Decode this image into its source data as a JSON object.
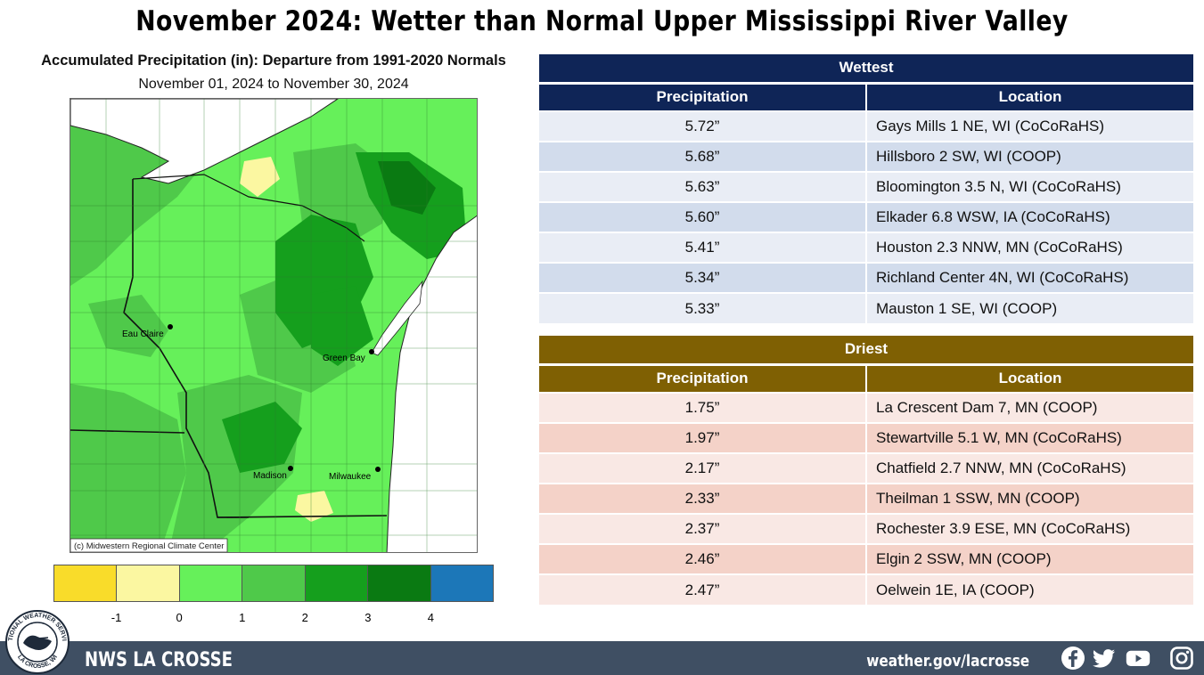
{
  "title": "November 2024:  Wetter than Normal Upper Mississippi River Valley",
  "map": {
    "title": "Accumulated Precipitation (in): Departure from 1991-2020 Normals",
    "subtitle": "November 01, 2024 to November 30, 2024",
    "cities": {
      "eau_claire": "Eau Claire",
      "green_bay": "Green Bay",
      "madison": "Madison",
      "milwaukee": "Milwaukee"
    },
    "copyright": "(c) Midwestern Regional Climate Center",
    "legend": {
      "colors": [
        "#f9dc2a",
        "#fbf7a1",
        "#66f05a",
        "#4fc94a",
        "#159f1d",
        "#0a7a12",
        "#1c77b8"
      ],
      "ticks": [
        "-1",
        "0",
        "1",
        "2",
        "3",
        "4"
      ]
    }
  },
  "wettest": {
    "header": "Wettest",
    "col_precip": "Precipitation",
    "col_location": "Location",
    "rows": [
      {
        "value": "5.72”",
        "location": "Gays Mills 1 NE, WI (CoCoRaHS)"
      },
      {
        "value": "5.68”",
        "location": "Hillsboro 2 SW, WI (COOP)"
      },
      {
        "value": "5.63”",
        "location": "Bloomington 3.5 N, WI (CoCoRaHS)"
      },
      {
        "value": "5.60”",
        "location": "Elkader 6.8 WSW, IA (CoCoRaHS)"
      },
      {
        "value": "5.41”",
        "location": "Houston 2.3 NNW, MN (CoCoRaHS)"
      },
      {
        "value": "5.34”",
        "location": "Richland Center 4N, WI (CoCoRaHS)"
      },
      {
        "value": "5.33”",
        "location": "Mauston 1 SE, WI (COOP)"
      }
    ]
  },
  "driest": {
    "header": "Driest",
    "col_precip": "Precipitation",
    "col_location": "Location",
    "rows": [
      {
        "value": "1.75”",
        "location": "La Crescent Dam 7, MN (COOP)"
      },
      {
        "value": "1.97”",
        "location": "Stewartville 5.1 W, MN (CoCoRaHS)"
      },
      {
        "value": "2.17”",
        "location": "Chatfield 2.7 NNW, MN (CoCoRaHS)"
      },
      {
        "value": "2.33”",
        "location": "Theilman 1 SSW, MN (COOP)"
      },
      {
        "value": "2.37”",
        "location": "Rochester 3.9 ESE, MN (CoCoRaHS)"
      },
      {
        "value": "2.46”",
        "location": "Elgin 2 SSW, MN (COOP)"
      },
      {
        "value": "2.47”",
        "location": "Oelwein 1E, IA (COOP)"
      }
    ]
  },
  "footer": {
    "office": "NWS LA CROSSE",
    "url": "weather.gov/lacrosse",
    "logo_text_top": "NATIONAL WEATHER SERVICE",
    "logo_text_bottom": "LA CROSSE, WI",
    "social_icons": [
      "facebook-icon",
      "twitter-icon",
      "youtube-icon",
      "instagram-icon"
    ]
  }
}
